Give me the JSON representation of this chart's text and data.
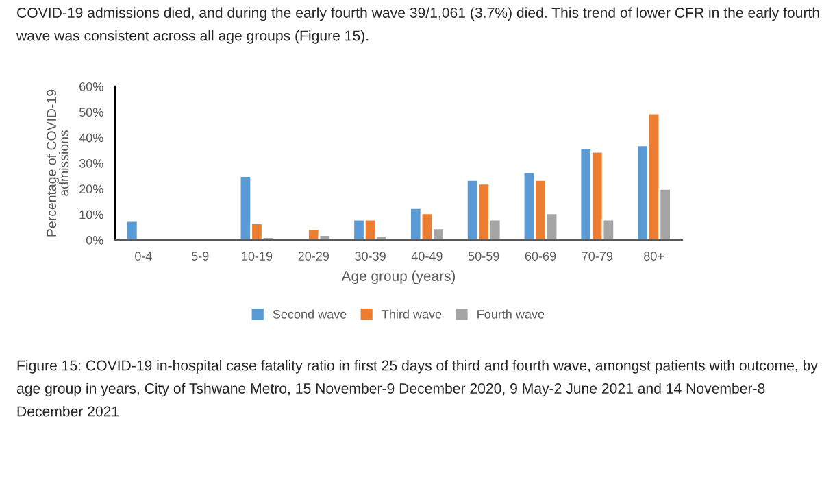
{
  "chart_data": {
    "type": "bar",
    "xlabel": "Age group (years)",
    "ylabel": "Percentage of COVID-19 admissions",
    "categories": [
      "0-4",
      "5-9",
      "10-19",
      "20-29",
      "30-39",
      "40-49",
      "50-59",
      "60-69",
      "70-79",
      "80+"
    ],
    "series": [
      {
        "name": "Second wave",
        "color": "#5b9bd5",
        "values": [
          7.5,
          null,
          25,
          null,
          8,
          12.5,
          23.5,
          26.5,
          36,
          37
        ]
      },
      {
        "name": "Third wave",
        "color": "#ed7d31",
        "values": [
          null,
          null,
          6.5,
          4.3,
          8,
          10.5,
          22,
          23.5,
          34.5,
          49.5
        ]
      },
      {
        "name": "Fourth wave",
        "color": "#a5a5a5",
        "values": [
          0.4,
          null,
          1.2,
          2,
          1.6,
          4.6,
          8,
          10.5,
          8,
          20
        ]
      }
    ],
    "ylim": [
      0,
      60
    ],
    "yticks": [
      {
        "value": 0,
        "label": "0%"
      },
      {
        "value": 10,
        "label": "10%"
      },
      {
        "value": 20,
        "label": "20%"
      },
      {
        "value": 30,
        "label": "30%"
      },
      {
        "value": 40,
        "label": "40%"
      },
      {
        "value": 50,
        "label": "50%"
      },
      {
        "value": 60,
        "label": "60%"
      }
    ],
    "grid": false,
    "legend": "bottom",
    "annotations": [
      "COVID-19 admissions died, and during the early fourth wave 39/1,061 (3.7%) died. This trend of lower CFR in the early fourth wave was consistent across all age groups (Figure 15).",
      "Figure 15: COVID-19 in-hospital case fatality ratio in first 25 days of third and fourth wave, amongst patients with outcome, by age group in years, City of Tshwane Metro, 15 November-9 December 2020, 9 May-2 June 2021 and 14 November-8 December 2021"
    ]
  }
}
